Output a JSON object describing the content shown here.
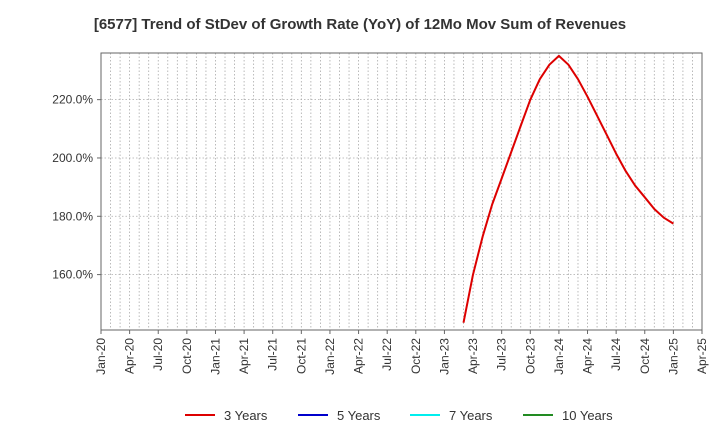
{
  "chart_data": {
    "type": "line",
    "title": "[6577]  Trend of StDev of Growth Rate (YoY) of 12Mo Mov Sum of Revenues",
    "xlabel": "",
    "ylabel": "",
    "x_ticks": [
      "Jan-20",
      "Apr-20",
      "Jul-20",
      "Oct-20",
      "Jan-21",
      "Apr-21",
      "Jul-21",
      "Oct-21",
      "Jan-22",
      "Apr-22",
      "Jul-22",
      "Oct-22",
      "Jan-23",
      "Apr-23",
      "Jul-23",
      "Oct-23",
      "Jan-24",
      "Apr-24",
      "Jul-24",
      "Oct-24",
      "Jan-25",
      "Apr-25"
    ],
    "xlim": [
      "2020-01",
      "2025-04"
    ],
    "y_ticks": [
      160,
      180,
      200,
      220
    ],
    "y_tick_format": "{v}.0%",
    "ylim": [
      141,
      236
    ],
    "grid": true,
    "legend_position": "bottom",
    "series": [
      {
        "name": "3 Years",
        "color": "#dd0000",
        "points": [
          [
            "2023-03",
            143.5
          ],
          [
            "2023-04",
            160.0
          ],
          [
            "2023-05",
            173.0
          ],
          [
            "2023-06",
            184.0
          ],
          [
            "2023-07",
            193.0
          ],
          [
            "2023-08",
            202.0
          ],
          [
            "2023-09",
            211.0
          ],
          [
            "2023-10",
            220.0
          ],
          [
            "2023-11",
            227.0
          ],
          [
            "2023-12",
            232.0
          ],
          [
            "2024-01",
            235.0
          ],
          [
            "2024-02",
            232.0
          ],
          [
            "2024-03",
            227.0
          ],
          [
            "2024-04",
            221.0
          ],
          [
            "2024-05",
            214.5
          ],
          [
            "2024-06",
            208.0
          ],
          [
            "2024-07",
            201.5
          ],
          [
            "2024-08",
            195.5
          ],
          [
            "2024-09",
            190.5
          ],
          [
            "2024-10",
            186.5
          ],
          [
            "2024-11",
            182.5
          ],
          [
            "2024-12",
            179.5
          ],
          [
            "2025-01",
            177.5
          ]
        ]
      },
      {
        "name": "5 Years",
        "color": "#0000cc",
        "points": []
      },
      {
        "name": "7 Years",
        "color": "#00eeee",
        "points": []
      },
      {
        "name": "10 Years",
        "color": "#228b22",
        "points": []
      }
    ]
  }
}
